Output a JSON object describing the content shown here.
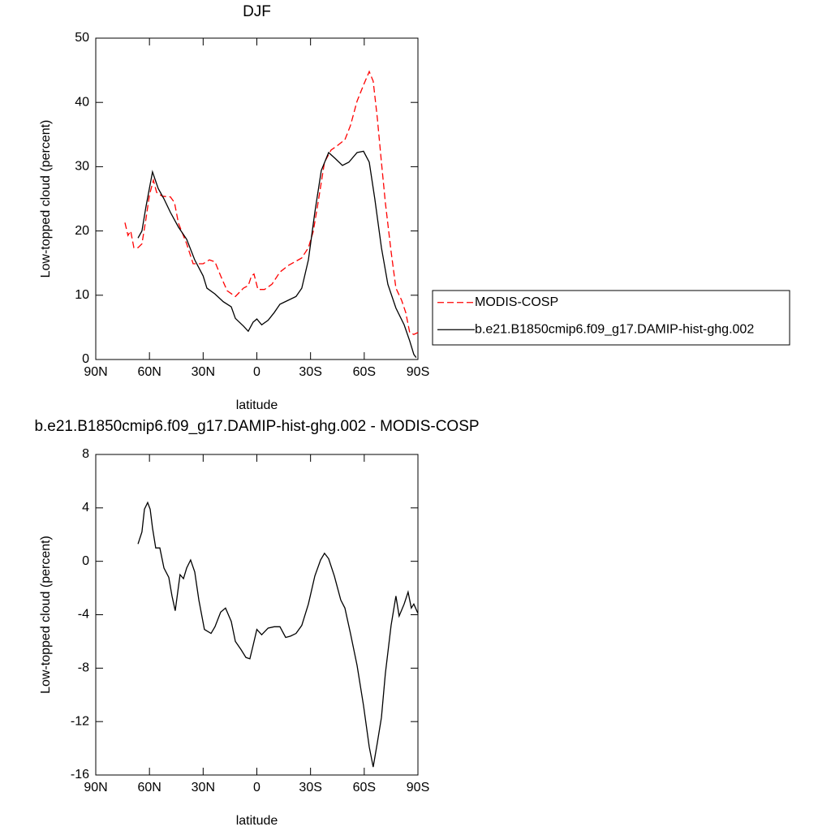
{
  "chart_data": [
    {
      "type": "line",
      "title": "DJF",
      "xlabel": "latitude",
      "ylabel": "Low-topped cloud (percent)",
      "xlim": [
        90,
        -90
      ],
      "xticks": [
        {
          "value": 90,
          "label": "90N"
        },
        {
          "value": 60,
          "label": "60N"
        },
        {
          "value": 30,
          "label": "30N"
        },
        0,
        {
          "value": -30,
          "label": "30S"
        },
        {
          "value": -60,
          "label": "60S"
        },
        {
          "value": -90,
          "label": "90S"
        }
      ],
      "ylim": [
        0,
        50
      ],
      "yticks": [
        0,
        10,
        20,
        30,
        40,
        50
      ],
      "legend": "right",
      "series": [
        {
          "name": "MODIS-COSP",
          "color": "#ff0000",
          "dashed": true,
          "x": [
            73.7,
            72,
            70.5,
            68.7,
            66.4,
            64.2,
            62,
            60,
            57.8,
            56,
            52.8,
            48.3,
            46,
            43.8,
            39.2,
            35.6,
            30,
            26.5,
            23.4,
            20.2,
            16.6,
            12,
            7.5,
            4.8,
            3,
            1.6,
            -0.6,
            -4.3,
            -8.4,
            -12.9,
            -17.4,
            -21.9,
            -25.1,
            -28.8,
            -31.5,
            -34.2,
            -37.8,
            -41.5,
            -44.6,
            -49.2,
            -52.3,
            -56,
            -59.6,
            -62.8,
            -65,
            -67.3,
            -69.6,
            -71.8,
            -75,
            -77.7,
            -80.9,
            -83.2,
            -85.4,
            -87.7,
            -90
          ],
          "values": [
            21.3,
            19.3,
            20,
            17.4,
            17.4,
            18,
            21.8,
            25.6,
            27.9,
            26,
            25.4,
            25.3,
            24.4,
            21.2,
            18,
            14.9,
            14.9,
            15.5,
            15.2,
            13,
            10.7,
            9.8,
            11.1,
            11.5,
            13,
            13.3,
            10.9,
            10.9,
            11.7,
            13.6,
            14.6,
            15.3,
            15.8,
            17.4,
            19.9,
            24.4,
            30.7,
            32.6,
            33.2,
            34.2,
            36.4,
            40.2,
            42.7,
            44.8,
            43.3,
            37.6,
            30.7,
            24.4,
            16.8,
            11.1,
            9.2,
            7.3,
            4.2,
            3.9,
            4.2
          ]
        },
        {
          "name": "b.e21.B1850cmip6.f09_g17.DAMIP-hist-ghg.002",
          "color": "#000000",
          "dashed": false,
          "x": [
            66.4,
            64.2,
            62,
            58.3,
            55.1,
            51.9,
            48.3,
            43.8,
            39.2,
            34.7,
            30,
            27.9,
            23.4,
            18.8,
            14.3,
            12,
            7.5,
            4.8,
            2.1,
            0,
            -2.7,
            -6.3,
            -9.7,
            -12.9,
            -17.4,
            -21.9,
            -25.1,
            -28.8,
            -32.4,
            -36,
            -40.1,
            -43.7,
            -47.8,
            -51.4,
            -56,
            -59.6,
            -62.8,
            -65.9,
            -69.6,
            -73.2,
            -77.7,
            -82.3,
            -85.4,
            -87.7,
            -89
          ],
          "values": [
            18.9,
            20,
            23.7,
            29.2,
            26.6,
            25,
            22.9,
            20.6,
            18.7,
            15.5,
            13,
            11.1,
            10.2,
            9,
            8.2,
            6.4,
            5.2,
            4.4,
            5.8,
            6.3,
            5.4,
            6.1,
            7.3,
            8.6,
            9.2,
            9.8,
            11.1,
            15.5,
            22.9,
            29.4,
            32.2,
            31.3,
            30.2,
            30.7,
            32.2,
            32.4,
            30.7,
            25,
            17.4,
            11.7,
            8,
            5.4,
            2.9,
            0.8,
            0.3
          ]
        }
      ]
    },
    {
      "type": "line",
      "title": "b.e21.B1850cmip6.f09_g17.DAMIP-hist-ghg.002 - MODIS-COSP",
      "xlabel": "latitude",
      "ylabel": "Low-topped cloud (percent)",
      "xlim": [
        90,
        -90
      ],
      "xticks": [
        {
          "value": 90,
          "label": "90N"
        },
        {
          "value": 60,
          "label": "60N"
        },
        {
          "value": 30,
          "label": "30N"
        },
        0,
        {
          "value": -30,
          "label": "30S"
        },
        {
          "value": -60,
          "label": "60S"
        },
        {
          "value": -90,
          "label": "90S"
        }
      ],
      "ylim": [
        -16,
        8
      ],
      "yticks": [
        -16,
        -12,
        -8,
        -4,
        0,
        4,
        8
      ],
      "color": "#000000",
      "x": [
        66.4,
        64.2,
        62.8,
        61,
        59.6,
        58.3,
        56.5,
        54.2,
        51.9,
        49.2,
        47.4,
        45.6,
        42.9,
        41,
        39.2,
        37,
        34.7,
        32.4,
        29.3,
        25.6,
        23.4,
        20.2,
        17.5,
        14.3,
        12,
        8.9,
        6.1,
        3.9,
        2.1,
        0,
        -2.7,
        -6.3,
        -9.7,
        -12.9,
        -16.1,
        -18.8,
        -21.9,
        -25.1,
        -28.8,
        -32.4,
        -35.6,
        -37.8,
        -40.1,
        -43.3,
        -46.9,
        -49.2,
        -52.3,
        -56,
        -59.6,
        -62.8,
        -65,
        -67.3,
        -69.6,
        -71.8,
        -75,
        -77.7,
        -79.5,
        -82.3,
        -84.5,
        -86.3,
        -87.7,
        -90
      ],
      "values": [
        1.3,
        2.2,
        3.9,
        4.4,
        3.9,
        2.5,
        1,
        1,
        -0.5,
        -1.2,
        -2.6,
        -3.7,
        -1,
        -1.3,
        -0.5,
        0.1,
        -0.8,
        -2.9,
        -5.1,
        -5.4,
        -4.9,
        -3.8,
        -3.5,
        -4.5,
        -6,
        -6.6,
        -7.2,
        -7.3,
        -6.3,
        -5.1,
        -5.5,
        -5,
        -4.9,
        -4.9,
        -5.7,
        -5.6,
        -5.4,
        -4.8,
        -3.2,
        -1.1,
        0.1,
        0.6,
        0.2,
        -1.1,
        -2.9,
        -3.5,
        -5.4,
        -7.8,
        -10.8,
        -13.9,
        -15.4,
        -13.6,
        -11.7,
        -8.4,
        -4.8,
        -2.6,
        -4.1,
        -3.2,
        -2.3,
        -3.5,
        -3.2,
        -3.9
      ]
    }
  ]
}
